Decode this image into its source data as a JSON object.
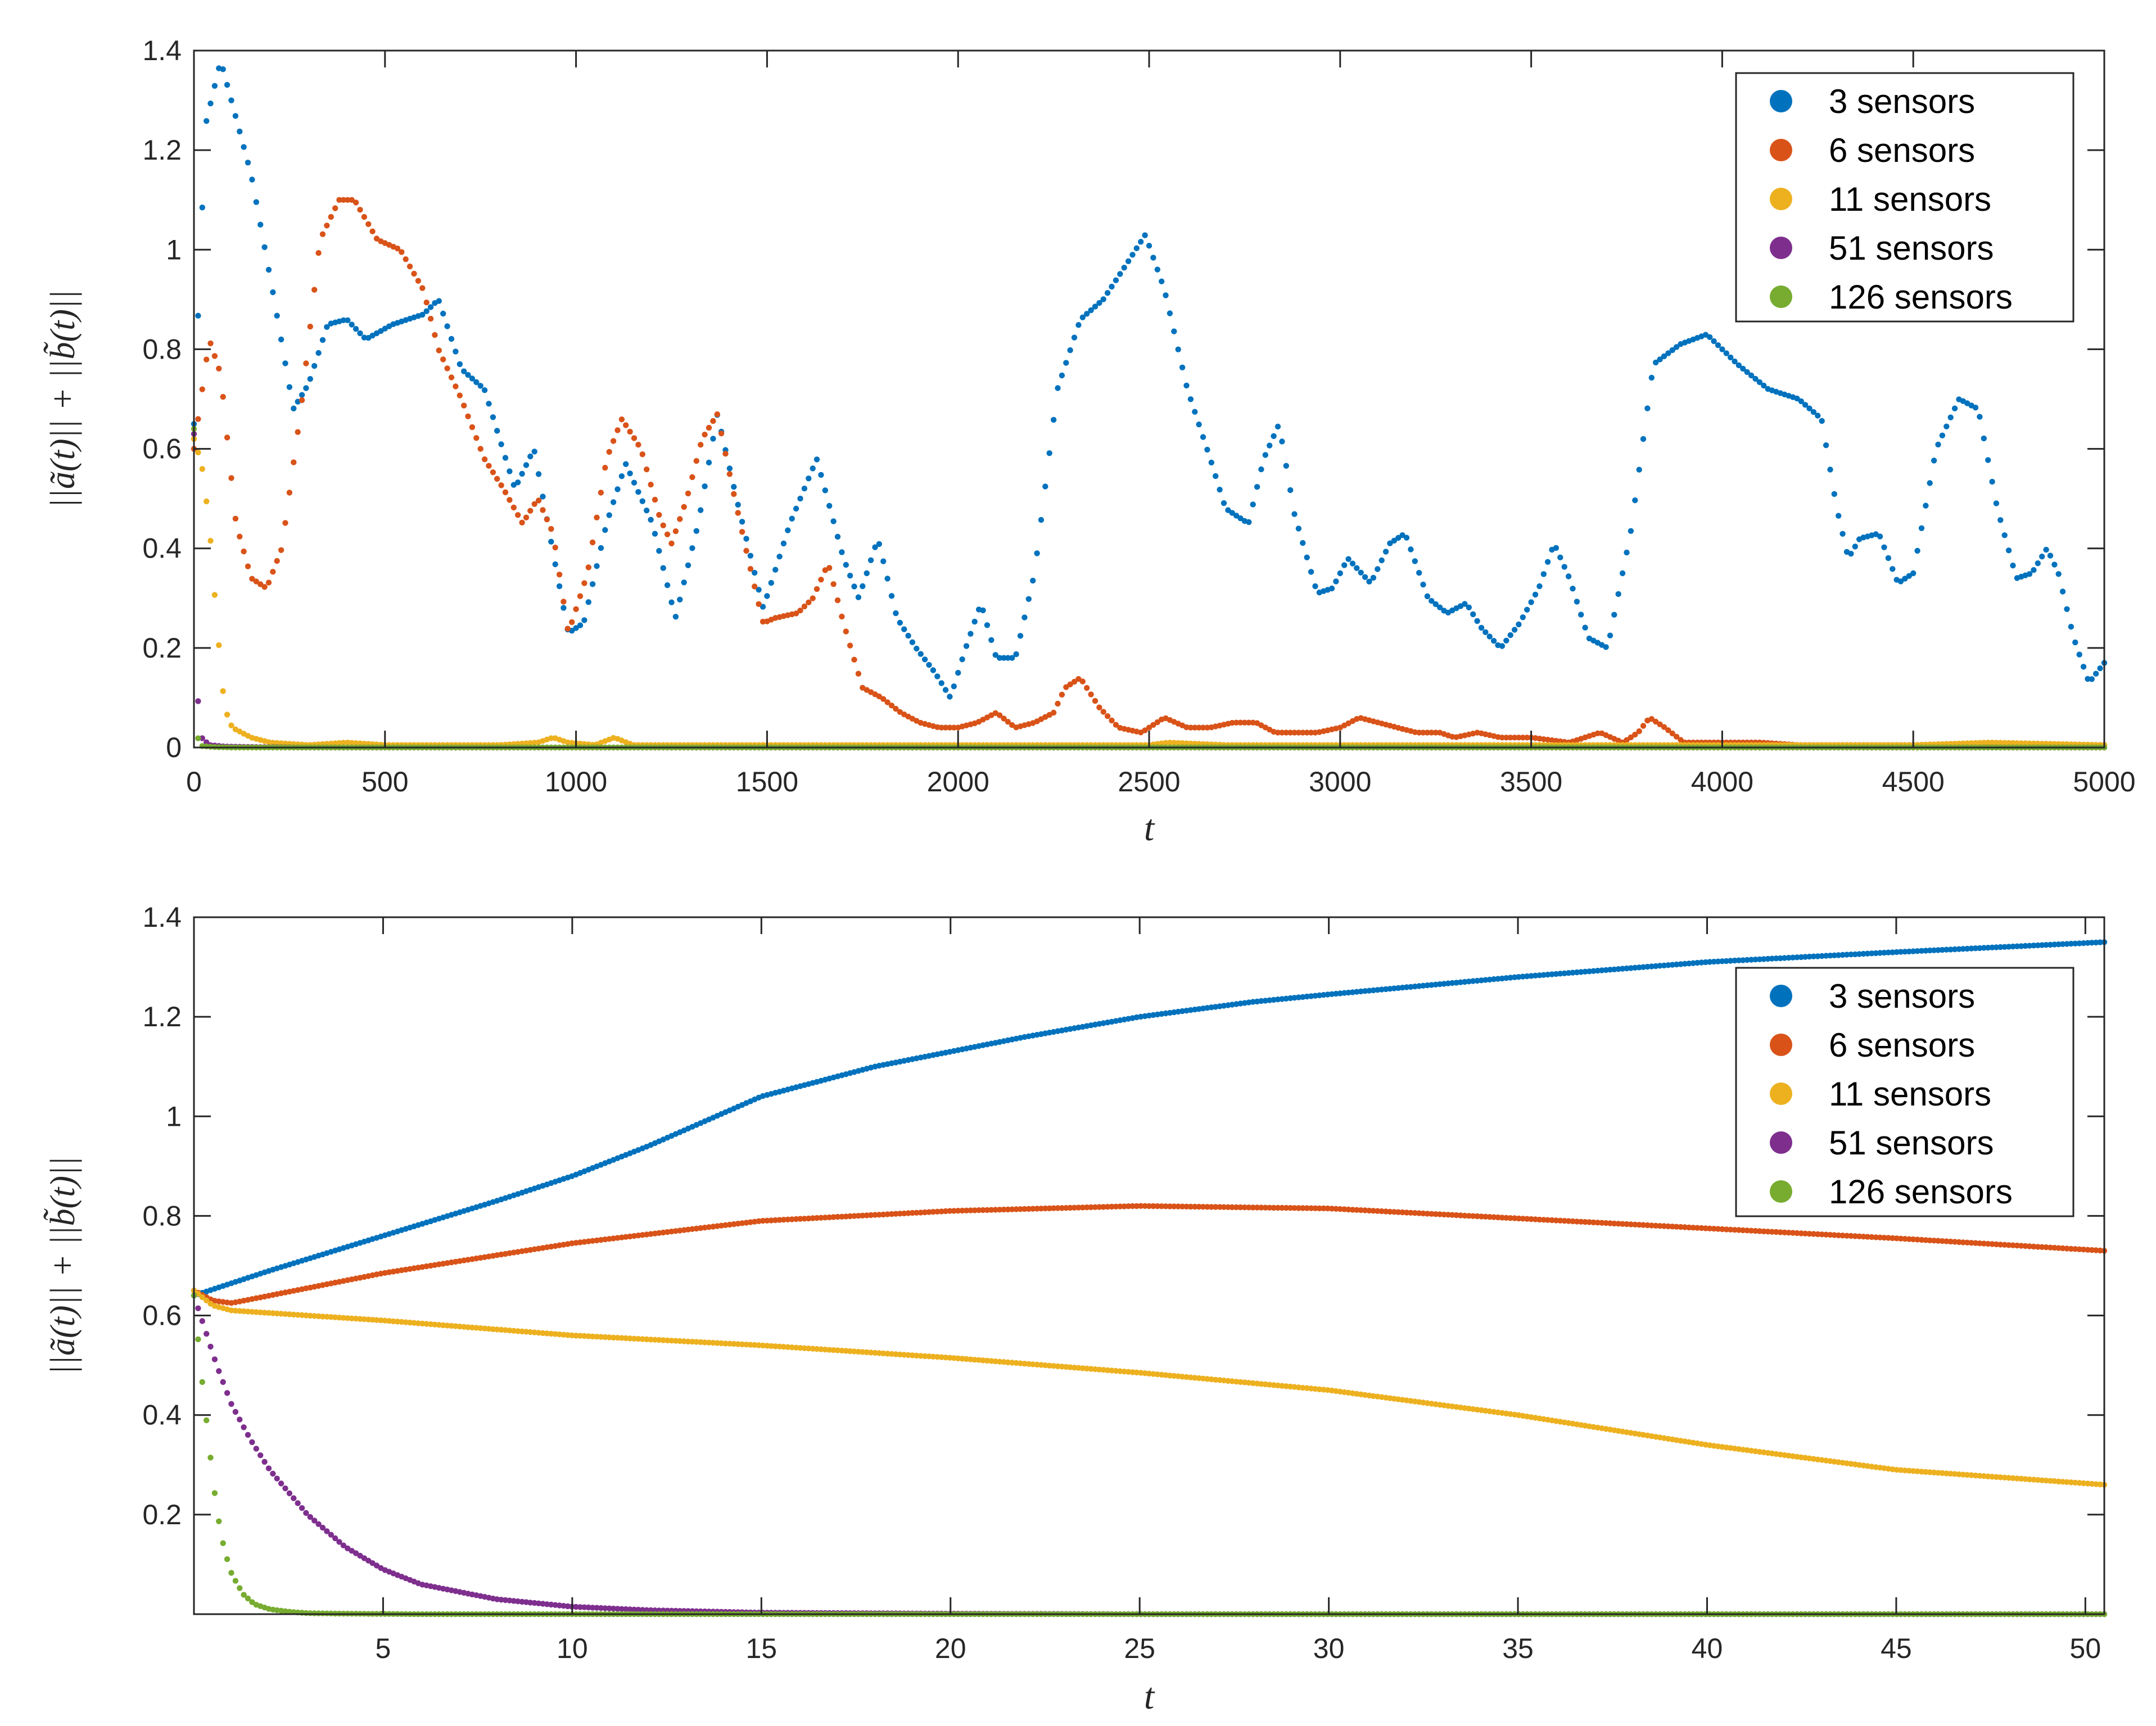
{
  "chart_data": [
    {
      "type": "scatter",
      "title": "",
      "xlabel": "t",
      "ylabel": "||ã(t)|| + ||b̃(t)||",
      "xlim": [
        0,
        5000
      ],
      "ylim": [
        0,
        1.4
      ],
      "xticks": [
        0,
        500,
        1000,
        1500,
        2000,
        2500,
        3000,
        3500,
        4000,
        4500,
        5000
      ],
      "yticks": [
        0,
        0.2,
        0.4,
        0.6,
        0.8,
        1,
        1.2,
        1.4
      ],
      "xtick_labels": [
        "0",
        "500",
        "1000",
        "1500",
        "2000",
        "2500",
        "3000",
        "3500",
        "4000",
        "4500",
        "5000"
      ],
      "ytick_labels": [
        "0",
        "0.2",
        "0.4",
        "0.6",
        "0.8",
        "1",
        "1.2",
        "1.4"
      ],
      "legend": "top-right",
      "series": [
        {
          "name": "3 sensors",
          "color": "#0072BD",
          "x": [
            0,
            30,
            70,
            150,
            210,
            260,
            300,
            350,
            400,
            450,
            520,
            600,
            640,
            700,
            760,
            800,
            840,
            890,
            950,
            980,
            1020,
            1080,
            1130,
            1200,
            1260,
            1320,
            1370,
            1420,
            1490,
            1560,
            1630,
            1700,
            1740,
            1790,
            1840,
            1890,
            1940,
            1980,
            2020,
            2060,
            2100,
            2150,
            2200,
            2260,
            2320,
            2380,
            2440,
            2490,
            2540,
            2600,
            2660,
            2700,
            2760,
            2800,
            2840,
            2880,
            2940,
            2980,
            3020,
            3080,
            3130,
            3170,
            3230,
            3280,
            3330,
            3370,
            3420,
            3470,
            3520,
            3560,
            3600,
            3650,
            3700,
            3760,
            3820,
            3890,
            3960,
            4040,
            4120,
            4200,
            4260,
            4300,
            4330,
            4360,
            4410,
            4460,
            4500,
            4560,
            4620,
            4670,
            4720,
            4770,
            4810,
            4850,
            4880,
            4920,
            4960,
            5000
          ],
          "y": [
            0.65,
            1.25,
            1.38,
            1.15,
            0.9,
            0.68,
            0.73,
            0.85,
            0.86,
            0.82,
            0.85,
            0.87,
            0.9,
            0.76,
            0.72,
            0.62,
            0.52,
            0.6,
            0.35,
            0.23,
            0.25,
            0.45,
            0.57,
            0.45,
            0.26,
            0.45,
            0.67,
            0.5,
            0.28,
            0.45,
            0.58,
            0.38,
            0.3,
            0.42,
            0.26,
            0.2,
            0.15,
            0.1,
            0.2,
            0.29,
            0.18,
            0.18,
            0.35,
            0.72,
            0.86,
            0.9,
            0.97,
            1.03,
            0.92,
            0.72,
            0.58,
            0.48,
            0.45,
            0.58,
            0.65,
            0.47,
            0.31,
            0.32,
            0.38,
            0.33,
            0.41,
            0.43,
            0.3,
            0.27,
            0.29,
            0.24,
            0.2,
            0.25,
            0.32,
            0.41,
            0.34,
            0.22,
            0.2,
            0.43,
            0.77,
            0.81,
            0.83,
            0.77,
            0.72,
            0.7,
            0.66,
            0.48,
            0.38,
            0.42,
            0.43,
            0.33,
            0.35,
            0.6,
            0.7,
            0.68,
            0.48,
            0.34,
            0.35,
            0.4,
            0.35,
            0.22,
            0.13,
            0.17
          ]
        },
        {
          "name": "6 sensors",
          "color": "#D95319",
          "x": [
            0,
            40,
            70,
            110,
            150,
            190,
            230,
            280,
            330,
            380,
            420,
            480,
            540,
            600,
            640,
            700,
            760,
            810,
            860,
            900,
            940,
            980,
            1030,
            1080,
            1120,
            1170,
            1220,
            1250,
            1290,
            1330,
            1370,
            1410,
            1450,
            1490,
            1520,
            1580,
            1620,
            1660,
            1700,
            1750,
            1800,
            1850,
            1900,
            1950,
            2000,
            2050,
            2100,
            2150,
            2200,
            2250,
            2280,
            2320,
            2370,
            2420,
            2480,
            2540,
            2600,
            2660,
            2720,
            2780,
            2830,
            2880,
            2940,
            3000,
            3050,
            3100,
            3150,
            3200,
            3260,
            3300,
            3360,
            3420,
            3500,
            3600,
            3640,
            3680,
            3740,
            3780,
            3810,
            3850,
            3900,
            3960,
            4040,
            4100,
            4200,
            4300,
            4500,
            4700,
            4900,
            5000
          ],
          "y": [
            0.6,
            0.82,
            0.75,
            0.45,
            0.34,
            0.32,
            0.4,
            0.68,
            1.02,
            1.1,
            1.1,
            1.02,
            1.0,
            0.92,
            0.8,
            0.7,
            0.58,
            0.52,
            0.45,
            0.5,
            0.43,
            0.23,
            0.35,
            0.58,
            0.66,
            0.6,
            0.46,
            0.41,
            0.5,
            0.62,
            0.67,
            0.52,
            0.38,
            0.25,
            0.26,
            0.27,
            0.3,
            0.37,
            0.25,
            0.12,
            0.1,
            0.07,
            0.05,
            0.04,
            0.04,
            0.05,
            0.07,
            0.04,
            0.05,
            0.07,
            0.12,
            0.14,
            0.08,
            0.04,
            0.03,
            0.06,
            0.04,
            0.04,
            0.05,
            0.05,
            0.03,
            0.03,
            0.03,
            0.04,
            0.06,
            0.05,
            0.04,
            0.03,
            0.03,
            0.02,
            0.03,
            0.02,
            0.02,
            0.01,
            0.02,
            0.03,
            0.01,
            0.03,
            0.06,
            0.04,
            0.01,
            0.01,
            0.01,
            0.01,
            0.005,
            0.005,
            0.005,
            0.005,
            0.005,
            0.005
          ]
        },
        {
          "name": "11 sensors",
          "color": "#EDB120",
          "x": [
            0,
            20,
            40,
            60,
            80,
            100,
            150,
            200,
            300,
            400,
            500,
            600,
            800,
            900,
            940,
            980,
            1050,
            1100,
            1150,
            1300,
            1500,
            1800,
            2000,
            2300,
            2500,
            2550,
            2700,
            3000,
            3500,
            4000,
            4500,
            4700,
            5000
          ],
          "y": [
            0.62,
            0.57,
            0.45,
            0.25,
            0.08,
            0.04,
            0.02,
            0.01,
            0.005,
            0.01,
            0.005,
            0.005,
            0.005,
            0.01,
            0.02,
            0.01,
            0.005,
            0.02,
            0.005,
            0.005,
            0.005,
            0.005,
            0.005,
            0.005,
            0.005,
            0.01,
            0.005,
            0.005,
            0.005,
            0.005,
            0.005,
            0.01,
            0.005
          ]
        },
        {
          "name": "51 sensors",
          "color": "#7E2F8E",
          "x": [
            0,
            10,
            20,
            40,
            80,
            150,
            300,
            600,
            1000,
            2000,
            3000,
            4000,
            5000
          ],
          "y": [
            0.63,
            0.1,
            0.02,
            0.005,
            0.002,
            0.001,
            0,
            0,
            0,
            0,
            0,
            0,
            0
          ]
        },
        {
          "name": "126 sensors",
          "color": "#77AC30",
          "x": [
            0,
            5,
            10,
            20,
            50,
            100,
            300,
            1000,
            2000,
            3000,
            4000,
            5000
          ],
          "y": [
            0.64,
            0.2,
            0.02,
            0.003,
            0.001,
            0,
            0,
            0,
            0,
            0,
            0,
            0
          ]
        }
      ]
    },
    {
      "type": "scatter",
      "title": "",
      "xlabel": "t",
      "ylabel": "||ã(t)|| + ||b̃(t)||",
      "xlim": [
        0,
        50.5
      ],
      "ylim": [
        0,
        1.4
      ],
      "xticks": [
        5,
        10,
        15,
        20,
        25,
        30,
        35,
        40,
        45,
        50
      ],
      "yticks": [
        0.2,
        0.4,
        0.6,
        0.8,
        1,
        1.2,
        1.4
      ],
      "xtick_labels": [
        "5",
        "10",
        "15",
        "20",
        "25",
        "30",
        "35",
        "40",
        "45",
        "50"
      ],
      "ytick_labels": [
        "0.2",
        "0.4",
        "0.6",
        "0.8",
        "1",
        "1.2",
        "1.4"
      ],
      "legend": "top-right",
      "series": [
        {
          "name": "3 sensors",
          "color": "#0072BD",
          "x": [
            0,
            2,
            5,
            8,
            10,
            12,
            15,
            18,
            20,
            22,
            25,
            28,
            30,
            35,
            40,
            45,
            50.5
          ],
          "y": [
            0.64,
            0.69,
            0.76,
            0.83,
            0.88,
            0.94,
            1.04,
            1.1,
            1.13,
            1.16,
            1.2,
            1.23,
            1.245,
            1.28,
            1.31,
            1.33,
            1.35
          ]
        },
        {
          "name": "6 sensors",
          "color": "#D95319",
          "x": [
            0,
            0.5,
            1,
            2,
            5,
            10,
            15,
            20,
            25,
            30,
            35,
            40,
            45,
            50.5
          ],
          "y": [
            0.65,
            0.63,
            0.625,
            0.64,
            0.685,
            0.745,
            0.79,
            0.81,
            0.82,
            0.815,
            0.795,
            0.775,
            0.755,
            0.73
          ]
        },
        {
          "name": "11 sensors",
          "color": "#EDB120",
          "x": [
            0,
            0.5,
            1,
            2,
            5,
            10,
            15,
            20,
            25,
            30,
            35,
            40,
            45,
            50.5
          ],
          "y": [
            0.65,
            0.62,
            0.61,
            0.605,
            0.59,
            0.56,
            0.54,
            0.515,
            0.485,
            0.45,
            0.4,
            0.34,
            0.29,
            0.26
          ]
        },
        {
          "name": "51 sensors",
          "color": "#7E2F8E",
          "x": [
            0,
            0.3,
            0.6,
            1,
            1.5,
            2,
            3,
            4,
            5,
            6,
            8,
            10,
            12,
            15,
            20,
            25,
            30,
            40,
            50.5
          ],
          "y": [
            0.64,
            0.57,
            0.5,
            0.42,
            0.35,
            0.29,
            0.2,
            0.135,
            0.09,
            0.06,
            0.03,
            0.015,
            0.008,
            0.003,
            0.001,
            0,
            0,
            0,
            0
          ]
        },
        {
          "name": "126 sensors",
          "color": "#77AC30",
          "x": [
            0,
            0.2,
            0.4,
            0.6,
            0.8,
            1,
            1.3,
            1.6,
            2,
            2.5,
            3,
            4,
            6,
            10,
            20,
            30,
            40,
            50.5
          ],
          "y": [
            0.64,
            0.48,
            0.34,
            0.21,
            0.13,
            0.08,
            0.04,
            0.02,
            0.01,
            0.005,
            0.002,
            0.001,
            0,
            0,
            0,
            0,
            0,
            0
          ]
        }
      ]
    }
  ]
}
